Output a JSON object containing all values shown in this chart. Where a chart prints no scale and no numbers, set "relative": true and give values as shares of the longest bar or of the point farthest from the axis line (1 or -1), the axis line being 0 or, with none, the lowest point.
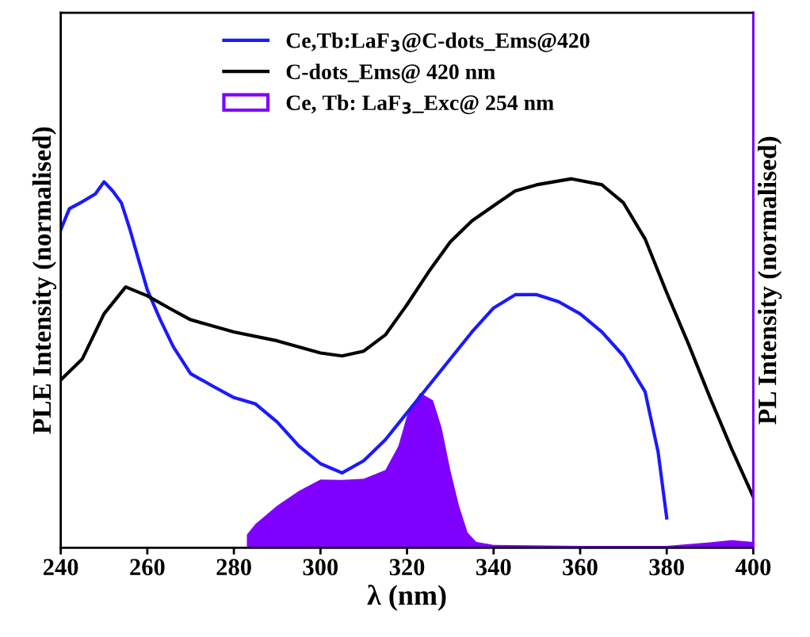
{
  "chart_data": {
    "type": "line",
    "relative": true,
    "xlabel": "λ (nm)",
    "ylabel": "PLE Intensity (normalised)",
    "y2label": "PL Intensity (normalised)",
    "xlim": [
      240,
      400
    ],
    "xticks": [
      240,
      260,
      280,
      300,
      320,
      340,
      360,
      380,
      400
    ],
    "legend": "top",
    "grid": false,
    "marker": "none",
    "line_style": "solid",
    "series": [
      {
        "name": "Ce,Tb:LaF$_{3}$@C-dots_Ems@420",
        "color": "#1a1aff",
        "x": [
          240,
          242,
          245,
          248,
          250,
          252,
          254,
          256,
          258,
          260,
          263,
          266,
          270,
          275,
          280,
          285,
          290,
          295,
          300,
          305,
          310,
          315,
          320,
          325,
          330,
          335,
          340,
          345,
          350,
          355,
          360,
          365,
          370,
          375,
          378,
          380
        ],
        "values": [
          0.862,
          0.919,
          0.938,
          0.959,
          0.992,
          0.967,
          0.935,
          0.862,
          0.78,
          0.699,
          0.618,
          0.545,
          0.472,
          0.439,
          0.407,
          0.39,
          0.341,
          0.276,
          0.228,
          0.203,
          0.236,
          0.293,
          0.366,
          0.439,
          0.512,
          0.585,
          0.65,
          0.686,
          0.686,
          0.667,
          0.634,
          0.585,
          0.52,
          0.423,
          0.26,
          0.081
        ]
      },
      {
        "name": "C-dots_Ems@ 420 nm",
        "color": "#000000",
        "x": [
          240,
          245,
          250,
          255,
          260,
          265,
          270,
          280,
          290,
          300,
          305,
          310,
          315,
          320,
          325,
          330,
          335,
          340,
          345,
          350,
          358,
          365,
          370,
          375,
          380,
          385,
          390,
          395,
          400
        ],
        "values": [
          0.455,
          0.512,
          0.634,
          0.707,
          0.683,
          0.65,
          0.618,
          0.585,
          0.561,
          0.528,
          0.52,
          0.533,
          0.577,
          0.659,
          0.748,
          0.829,
          0.886,
          0.927,
          0.967,
          0.984,
          1.0,
          0.984,
          0.935,
          0.837,
          0.691,
          0.553,
          0.407,
          0.268,
          0.138
        ]
      },
      {
        "name": "Ce, Tb: LaF$_{3}$_Exc@ 254 nm",
        "type": "area",
        "color": "#8000ff",
        "x": [
          283,
          285,
          290,
          295,
          300,
          305,
          310,
          315,
          318,
          320,
          323,
          326,
          328,
          330,
          332,
          334,
          336,
          340,
          360,
          380,
          390,
          395,
          400
        ],
        "values": [
          0.036,
          0.065,
          0.114,
          0.154,
          0.185,
          0.184,
          0.187,
          0.211,
          0.276,
          0.358,
          0.42,
          0.4,
          0.325,
          0.211,
          0.114,
          0.041,
          0.016,
          0.008,
          0.005,
          0.005,
          0.015,
          0.021,
          0.016
        ]
      }
    ]
  }
}
